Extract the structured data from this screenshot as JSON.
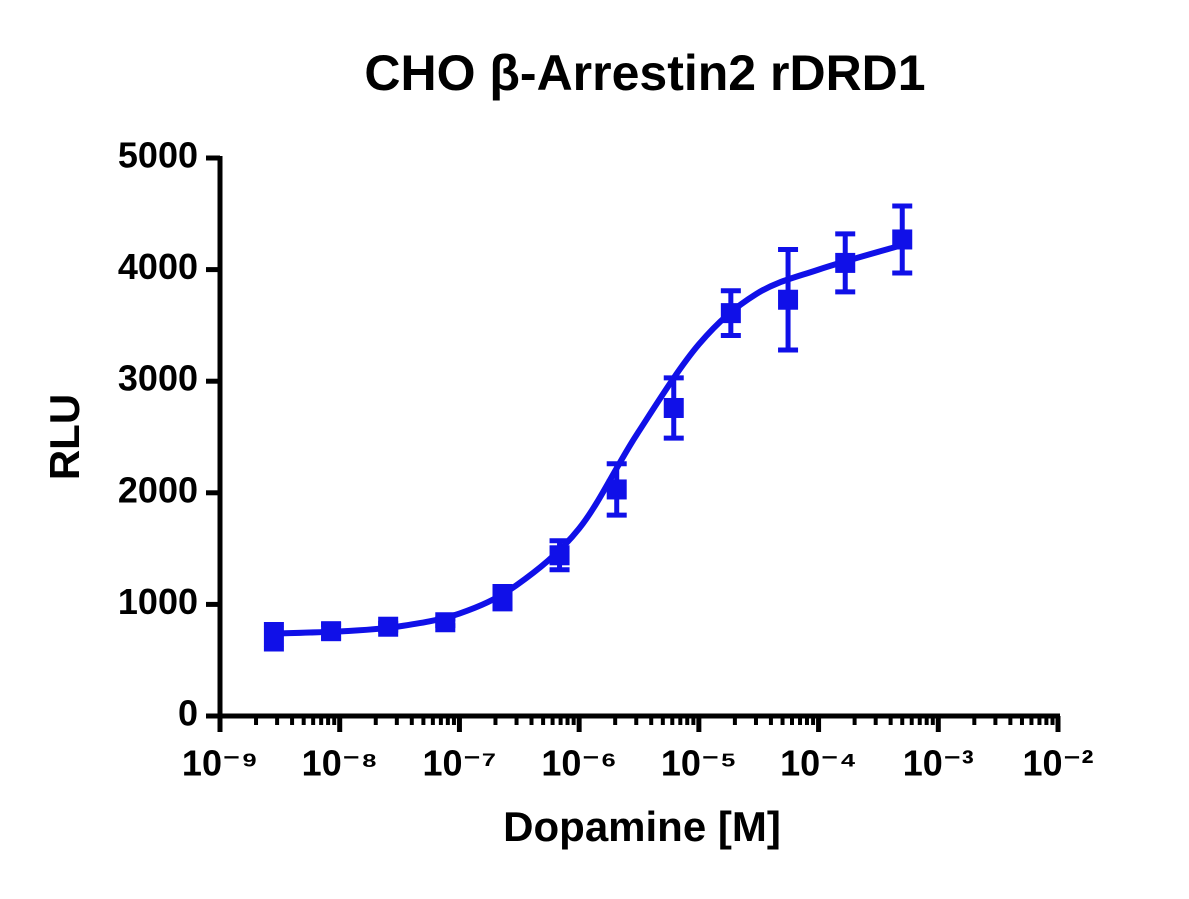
{
  "chart_data": {
    "type": "scatter",
    "title": "CHO β-Arrestin2 rDRD1",
    "x_label": "Dopamine [M]",
    "y_label": "RLU",
    "log_x": true,
    "xlim": [
      1e-09,
      0.01
    ],
    "xticks": [
      {
        "value": 1e-09,
        "label": "10⁻⁹"
      },
      {
        "value": 1e-08,
        "label": "10⁻⁸"
      },
      {
        "value": 1e-07,
        "label": "10⁻⁷"
      },
      {
        "value": 1e-06,
        "label": "10⁻⁶"
      },
      {
        "value": 1e-05,
        "label": "10⁻⁵"
      },
      {
        "value": 0.0001,
        "label": "10⁻⁴"
      },
      {
        "value": 0.001,
        "label": "10⁻³"
      },
      {
        "value": 0.01,
        "label": "10⁻²"
      }
    ],
    "ylim": [
      0,
      5000
    ],
    "yticks": [
      0,
      1000,
      2000,
      3000,
      4000,
      5000
    ],
    "series": [
      {
        "color": "#1010e8",
        "x": [
          2.82e-09,
          8.47e-09,
          2.54e-08,
          7.62e-08,
          2.29e-07,
          6.86e-07,
          2.06e-06,
          6.17e-06,
          1.85e-05,
          5.56e-05,
          0.000167,
          0.0005
        ],
        "values": [
          710,
          760,
          800,
          840,
          1060,
          1440,
          2030,
          2760,
          3610,
          3730,
          4060,
          4270
        ],
        "errors": [
          110,
          60,
          30,
          30,
          100,
          130,
          230,
          270,
          200,
          450,
          260,
          300
        ]
      }
    ],
    "curve": {
      "color": "#1010e8",
      "x": [
        3e-09,
        1e-08,
        3e-08,
        1e-07,
        3e-07,
        1e-06,
        3e-06,
        1e-05,
        3e-05,
        0.0001,
        0.0005
      ],
      "values": [
        740,
        758,
        800,
        918,
        1172,
        1680,
        2515,
        3330,
        3780,
        4000,
        4220
      ]
    }
  }
}
